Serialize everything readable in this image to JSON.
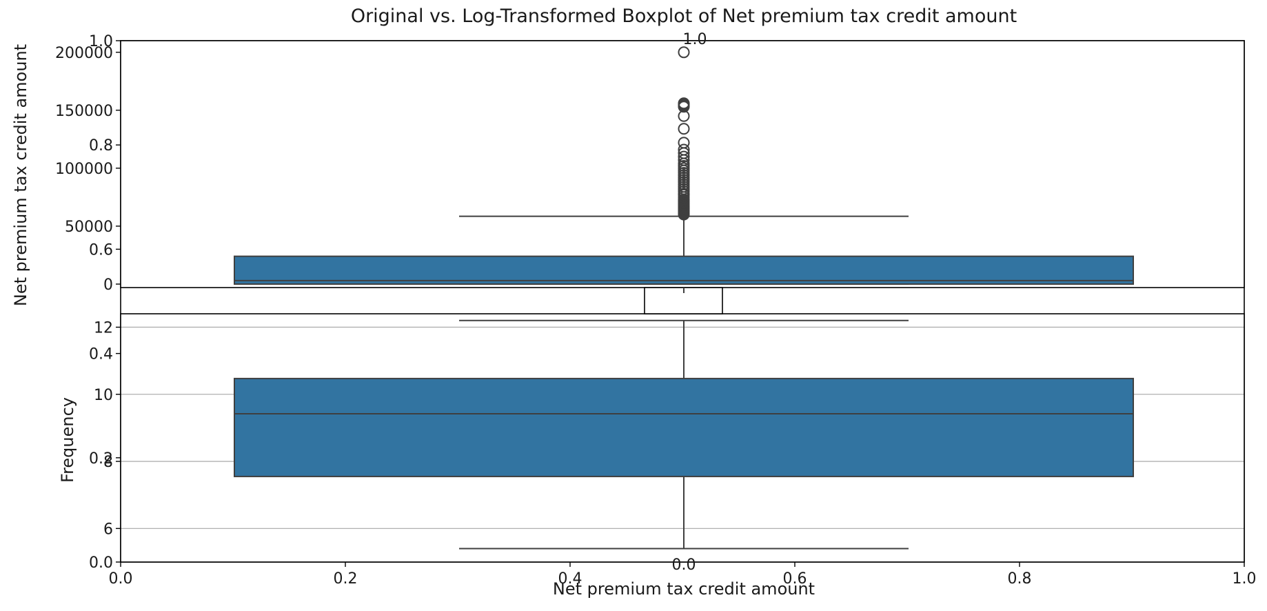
{
  "figure": {
    "title": "Original vs. Log-Transformed Boxplot of Net premium tax credit amount",
    "axis_color": "#000000",
    "box_color": "#3274a1",
    "line_color": "#3f3f3f",
    "grid_color": "#b0b0b0"
  },
  "chart_data": [
    {
      "type": "box",
      "name": "original",
      "title": "Original vs. Log-Transformed Boxplot of Net premium tax credit amount",
      "xlabel": "",
      "ylabel": "Net premium tax credit amount",
      "orientation": "vertical",
      "ylim": [
        -3000,
        210000
      ],
      "yticks": [
        0,
        50000,
        100000,
        150000,
        200000
      ],
      "ytick_labels": [
        "0",
        "50000",
        "100000",
        "150000",
        "200000"
      ],
      "grid": false,
      "box": {
        "whislo": 0,
        "q1": 0,
        "median": 3000,
        "q3": 24000,
        "whishi": 58500
      },
      "fliers": [
        60000,
        61000,
        62000,
        63000,
        64000,
        65000,
        66000,
        67000,
        68000,
        69000,
        70000,
        71000,
        72000,
        73000,
        75000,
        77000,
        78000,
        80000,
        82000,
        84000,
        86000,
        88000,
        90000,
        92000,
        94000,
        96000,
        98000,
        100000,
        102000,
        104000,
        107000,
        110000,
        113000,
        116000,
        122000,
        134000,
        145000,
        153000,
        154000,
        155000,
        156000,
        200000
      ]
    },
    {
      "type": "box",
      "name": "log-transformed",
      "xlabel": "Net premium tax credit amount",
      "ylabel": "",
      "orientation": "vertical",
      "ylim": [
        5.0,
        12.4
      ],
      "yticks": [
        6,
        8,
        10,
        12
      ],
      "ytick_labels": [
        "6",
        "8",
        "10",
        "12"
      ],
      "grid": true,
      "box": {
        "whislo": 5.4,
        "q1": 7.55,
        "median": 9.42,
        "q3": 10.47,
        "whishi": 12.2
      },
      "fliers": []
    },
    {
      "type": "empty-axes",
      "name": "background",
      "ylabel": "Frequency",
      "xlim": [
        0.0,
        1.0
      ],
      "ylim": [
        0.0,
        1.0
      ],
      "xticks": [
        "0.0",
        "0.2",
        "0.4",
        "0.6",
        "0.8",
        "1.0"
      ],
      "yticks": [
        "0.0",
        "0.2",
        "0.4",
        "0.6",
        "0.8",
        "1.0"
      ]
    },
    {
      "type": "empty-axes",
      "name": "inset",
      "xticks": [
        "0.0",
        "0.2",
        "0.4",
        "0.6",
        "0.8",
        "1.0"
      ],
      "yticks": [
        "0.0",
        "1.0"
      ]
    }
  ]
}
